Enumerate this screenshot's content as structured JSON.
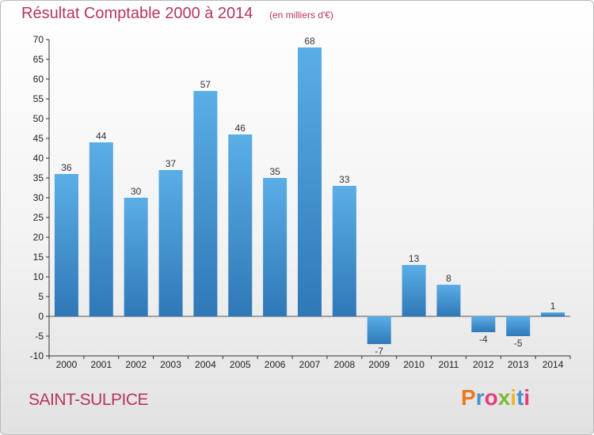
{
  "chart_data": {
    "type": "bar",
    "title": "Résultat Comptable 2000 à 2014",
    "subtitle": "(en milliers d'€)",
    "categories": [
      "2000",
      "2001",
      "2002",
      "2003",
      "2004",
      "2005",
      "2006",
      "2007",
      "2008",
      "2009",
      "2010",
      "2011",
      "2012",
      "2013",
      "2014"
    ],
    "values": [
      36,
      44,
      30,
      37,
      57,
      46,
      35,
      68,
      33,
      -7,
      13,
      8,
      -4,
      -5,
      1
    ],
    "ylim": [
      -10,
      70
    ],
    "yticks": [
      -10,
      -5,
      0,
      5,
      10,
      15,
      20,
      25,
      30,
      35,
      40,
      45,
      50,
      55,
      60,
      65,
      70
    ],
    "xlabel": "",
    "ylabel": "",
    "grid": false
  },
  "footer": {
    "commune": "SAINT-SULPICE",
    "logo": {
      "letters": [
        "P",
        "r",
        "o",
        "x",
        "i",
        "t",
        "i"
      ],
      "colors": [
        "#e87a1e",
        "#4c8fd0",
        "#e33e79",
        "#7cb83a",
        "#f0b428",
        "#4c8fd0",
        "#e33e79"
      ]
    }
  },
  "colors": {
    "bar_top": "#5aaee6",
    "bar_bottom": "#2f78b8",
    "accent": "#b5365a"
  }
}
